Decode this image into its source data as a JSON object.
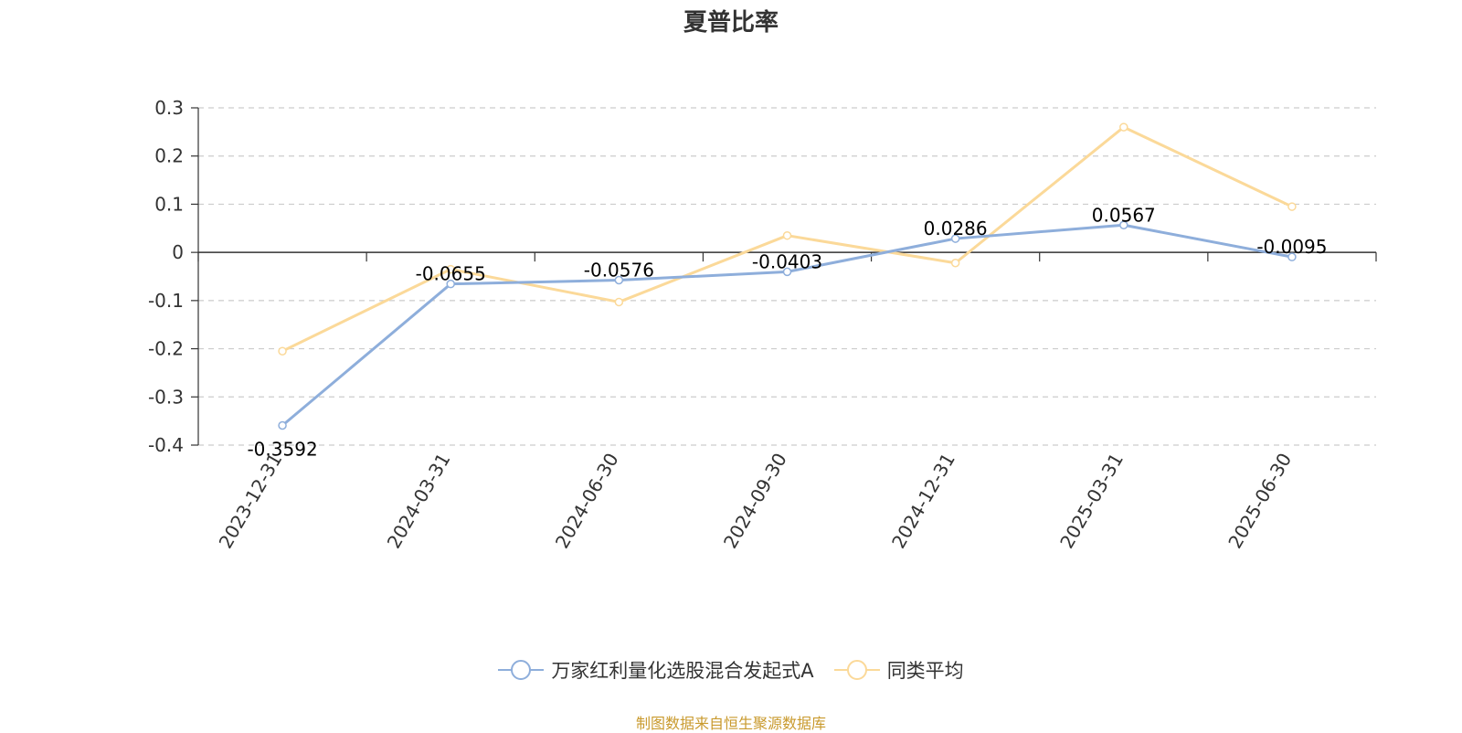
{
  "chart_data": {
    "type": "line",
    "title": "夏普比率",
    "categories": [
      "2023-12-31",
      "2024-03-31",
      "2024-06-30",
      "2024-09-30",
      "2024-12-31",
      "2025-03-31",
      "2025-06-30"
    ],
    "series": [
      {
        "name": "万家红利量化选股混合发起式A",
        "color": "#8eaedb",
        "values": [
          -0.3592,
          -0.0655,
          -0.0576,
          -0.0403,
          0.0286,
          0.0567,
          -0.0095
        ],
        "data_labels": [
          "-0.3592",
          "-0.0655",
          "-0.0576",
          "-0.0403",
          "0.0286",
          "0.0567",
          "-0.0095"
        ]
      },
      {
        "name": "同类平均",
        "color": "#fbd999",
        "values": [
          -0.205,
          -0.035,
          -0.103,
          0.035,
          -0.022,
          0.26,
          0.095
        ]
      }
    ],
    "ylim": [
      -0.4,
      0.3
    ],
    "yticks": [
      "0.3",
      "0.2",
      "0.1",
      "0",
      "-0.1",
      "-0.2",
      "-0.3",
      "-0.4"
    ],
    "ytick_values": [
      0.3,
      0.2,
      0.1,
      0,
      -0.1,
      -0.2,
      -0.3,
      -0.4
    ],
    "grid": true,
    "legend_position": "bottom"
  },
  "footer": {
    "source": "制图数据来自恒生聚源数据库"
  }
}
